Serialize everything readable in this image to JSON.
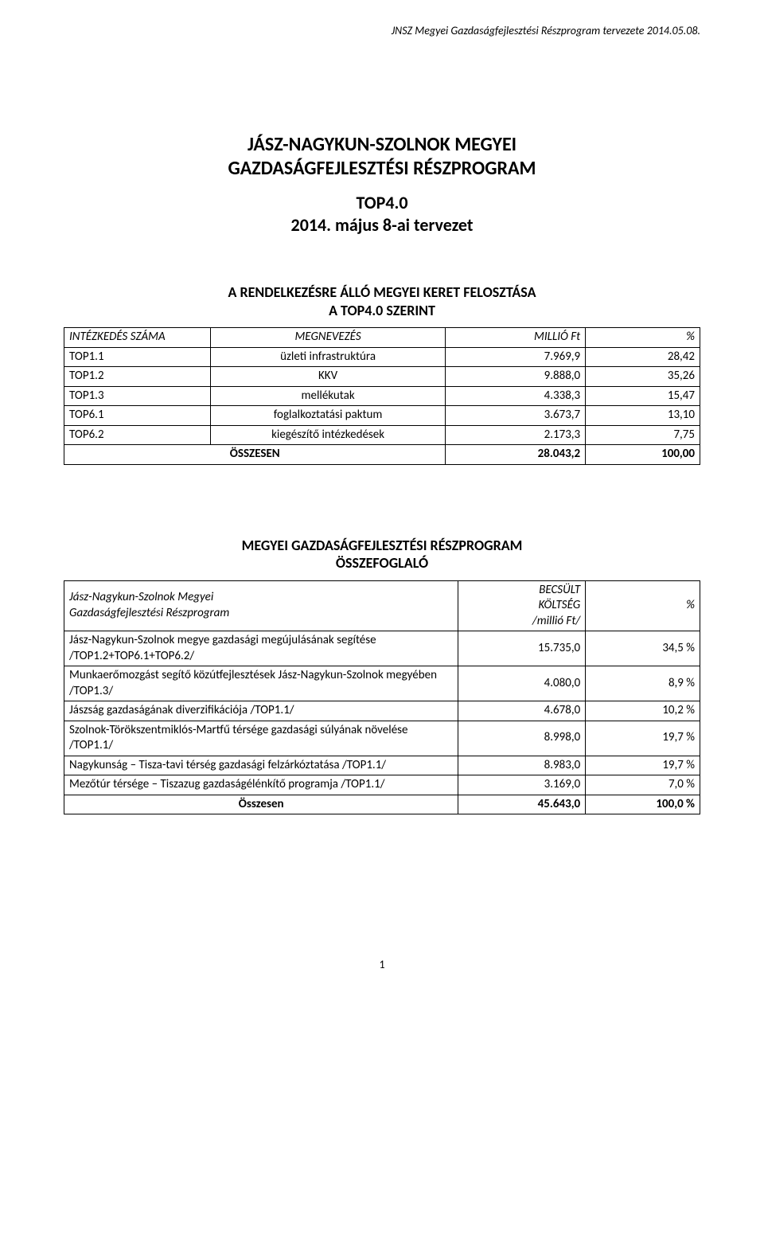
{
  "header": "JNSZ Megyei Gazdaságfejlesztési Részprogram tervezete 2014.05.08.",
  "title_line1": "JÁSZ-NAGYKUN-SZOLNOK MEGYEI",
  "title_line2": "GAZDASÁGFEJLESZTÉSI RÉSZPROGRAM",
  "subtitle_line1": "TOP4.0",
  "subtitle_line2": "2014. május 8-ai tervezet",
  "section1_line1": "A RENDELKEZÉSRE ÁLLÓ MEGYEI KERET FELOSZTÁSA",
  "section1_line2": "A TOP4.0 SZERINT",
  "table1": {
    "columns": [
      "INTÉZKEDÉS SZÁMA",
      "MEGNEVEZÉS",
      "MILLIÓ Ft",
      "%"
    ],
    "rows": [
      {
        "code": "TOP1.1",
        "name": "üzleti infrastruktúra",
        "value": "7.969,9",
        "pct": "28,42"
      },
      {
        "code": "TOP1.2",
        "name": "KKV",
        "value": "9.888,0",
        "pct": "35,26"
      },
      {
        "code": "TOP1.3",
        "name": "mellékutak",
        "value": "4.338,3",
        "pct": "15,47"
      },
      {
        "code": "TOP6.1",
        "name": "foglalkoztatási paktum",
        "value": "3.673,7",
        "pct": "13,10"
      },
      {
        "code": "TOP6.2",
        "name": "kiegészítő intézkedések",
        "value": "2.173,3",
        "pct": "7,75"
      }
    ],
    "sum": {
      "label": "ÖSSZESEN",
      "value": "28.043,2",
      "pct": "100,00"
    }
  },
  "section2_line1": "MEGYEI GAZDASÁGFEJLESZTÉSI RÉSZPROGRAM",
  "section2_line2": "ÖSSZEFOGLALÓ",
  "table2": {
    "header_desc_line1": "Jász-Nagykun-Szolnok Megyei",
    "header_desc_line2": "Gazdaságfejlesztési Részprogram",
    "header_cost_line1": "BECSÜLT",
    "header_cost_line2": "KÖLTSÉG",
    "header_cost_line3": "/millió Ft/",
    "header_pct": "%",
    "rows": [
      {
        "desc": "Jász-Nagykun-Szolnok megye gazdasági megújulásának segítése /TOP1.2+TOP6.1+TOP6.2/",
        "cost": "15.735,0",
        "pct": "34,5 %"
      },
      {
        "desc": "Munkaerőmozgást segítő közútfejlesztések Jász-Nagykun-Szolnok megyében /TOP1.3/",
        "cost": "4.080,0",
        "pct": "8,9 %"
      },
      {
        "desc": "Jászság gazdaságának diverzifikációja /TOP1.1/",
        "cost": "4.678,0",
        "pct": "10,2 %"
      },
      {
        "desc": "Szolnok-Törökszentmiklós-Martfű térsége gazdasági súlyának növelése /TOP1.1/",
        "cost": "8.998,0",
        "pct": "19,7 %"
      },
      {
        "desc": "Nagykunság – Tisza-tavi térség gazdasági felzárkóztatása /TOP1.1/",
        "cost": "8.983,0",
        "pct": "19,7 %"
      },
      {
        "desc": "Mezőtúr térsége – Tiszazug gazdaságélénkítő programja /TOP1.1/",
        "cost": "3.169,0",
        "pct": "7,0 %"
      }
    ],
    "sum": {
      "label": "Összesen",
      "cost": "45.643,0",
      "pct": "100,0 %"
    }
  },
  "page_number": "1"
}
